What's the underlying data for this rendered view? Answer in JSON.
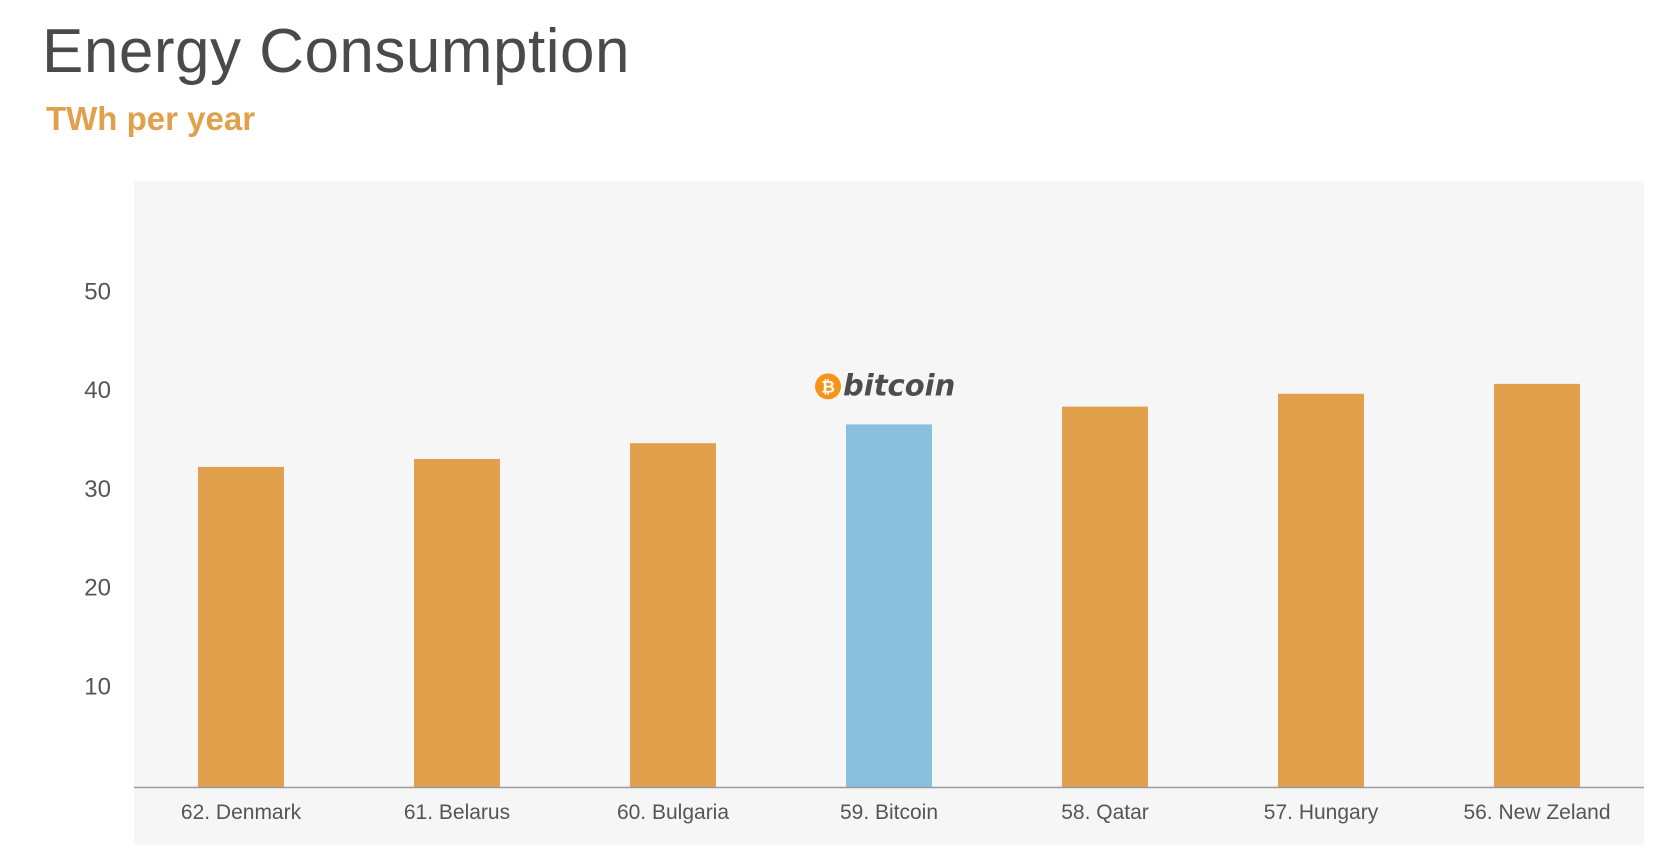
{
  "chart_data": {
    "type": "bar",
    "title": "Energy Consumption",
    "subtitle": "TWh per year",
    "categories": [
      "62. Denmark",
      "61. Belarus",
      "60. Bulgaria",
      "59. Bitcoin",
      "58. Qatar",
      "57. Hungary",
      "56. New Zeland"
    ],
    "values": [
      32.4,
      33.2,
      34.8,
      36.7,
      38.5,
      39.8,
      40.8
    ],
    "highlight_index": 3,
    "annotation": "bitcoin",
    "yticks": [
      10,
      20,
      30,
      40,
      50
    ],
    "ylim": [
      0,
      62
    ],
    "xlabel": "",
    "ylabel": "",
    "grid": false
  },
  "colors": {
    "bar": "#e0a04c",
    "highlight": "#88c0de",
    "subtitle": "#e0a04c",
    "plot_background": "#f6f6f6",
    "bitcoin_logo": "#f7931a"
  }
}
